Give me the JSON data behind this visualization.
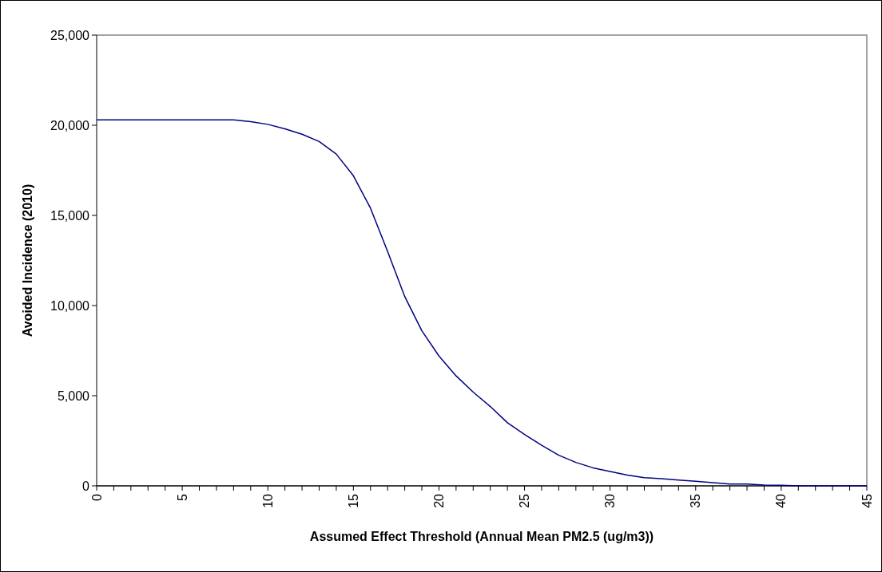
{
  "chart_data": {
    "type": "line",
    "xlabel": "Assumed Effect Threshold (Annual Mean PM2.5 (ug/m3))",
    "ylabel": "Avoided Incidence (2010)",
    "x": [
      0,
      1,
      2,
      3,
      4,
      5,
      6,
      7,
      8,
      9,
      10,
      11,
      12,
      13,
      14,
      15,
      16,
      17,
      18,
      19,
      20,
      21,
      22,
      23,
      24,
      25,
      26,
      27,
      28,
      29,
      30,
      31,
      32,
      33,
      34,
      35,
      36,
      37,
      38,
      39,
      40,
      41,
      42,
      43,
      44,
      45
    ],
    "series": [
      {
        "color": "#000080",
        "values": [
          20300,
          20300,
          20300,
          20300,
          20300,
          20300,
          20300,
          20300,
          20300,
          20200,
          20050,
          19800,
          19500,
          19100,
          18400,
          17200,
          15400,
          13000,
          10500,
          8600,
          7200,
          6100,
          5200,
          4400,
          3500,
          2850,
          2250,
          1700,
          1300,
          1000,
          800,
          600,
          450,
          400,
          320,
          250,
          180,
          100,
          100,
          40,
          30,
          0,
          0,
          0,
          0,
          0
        ]
      }
    ],
    "xlim": [
      0,
      45
    ],
    "xticks": [
      0,
      {
        "value": 1,
        "label": null
      },
      {
        "value": 2,
        "label": null
      },
      {
        "value": 3,
        "label": null
      },
      {
        "value": 4,
        "label": null
      },
      5,
      {
        "value": 6,
        "label": null
      },
      {
        "value": 7,
        "label": null
      },
      {
        "value": 8,
        "label": null
      },
      {
        "value": 9,
        "label": null
      },
      10,
      {
        "value": 11,
        "label": null
      },
      {
        "value": 12,
        "label": null
      },
      {
        "value": 13,
        "label": null
      },
      {
        "value": 14,
        "label": null
      },
      15,
      {
        "value": 16,
        "label": null
      },
      {
        "value": 17,
        "label": null
      },
      {
        "value": 18,
        "label": null
      },
      {
        "value": 19,
        "label": null
      },
      20,
      {
        "value": 21,
        "label": null
      },
      {
        "value": 22,
        "label": null
      },
      {
        "value": 23,
        "label": null
      },
      {
        "value": 24,
        "label": null
      },
      25,
      {
        "value": 26,
        "label": null
      },
      {
        "value": 27,
        "label": null
      },
      {
        "value": 28,
        "label": null
      },
      {
        "value": 29,
        "label": null
      },
      30,
      {
        "value": 31,
        "label": null
      },
      {
        "value": 32,
        "label": null
      },
      {
        "value": 33,
        "label": null
      },
      {
        "value": 34,
        "label": null
      },
      35,
      {
        "value": 36,
        "label": null
      },
      {
        "value": 37,
        "label": null
      },
      {
        "value": 38,
        "label": null
      },
      {
        "value": 39,
        "label": null
      },
      40,
      {
        "value": 41,
        "label": null
      },
      {
        "value": 42,
        "label": null
      },
      {
        "value": 43,
        "label": null
      },
      {
        "value": 44,
        "label": null
      },
      45
    ],
    "ylim": [
      0,
      25000
    ],
    "yticks": [
      {
        "value": 0,
        "label": "0"
      },
      {
        "value": 5000,
        "label": "5,000"
      },
      {
        "value": 10000,
        "label": "10,000"
      },
      {
        "value": 15000,
        "label": "15,000"
      },
      {
        "value": 20000,
        "label": "20,000"
      },
      {
        "value": 25000,
        "label": "25,000"
      }
    ],
    "marker": "none",
    "line_style": "solid",
    "grid": false
  }
}
